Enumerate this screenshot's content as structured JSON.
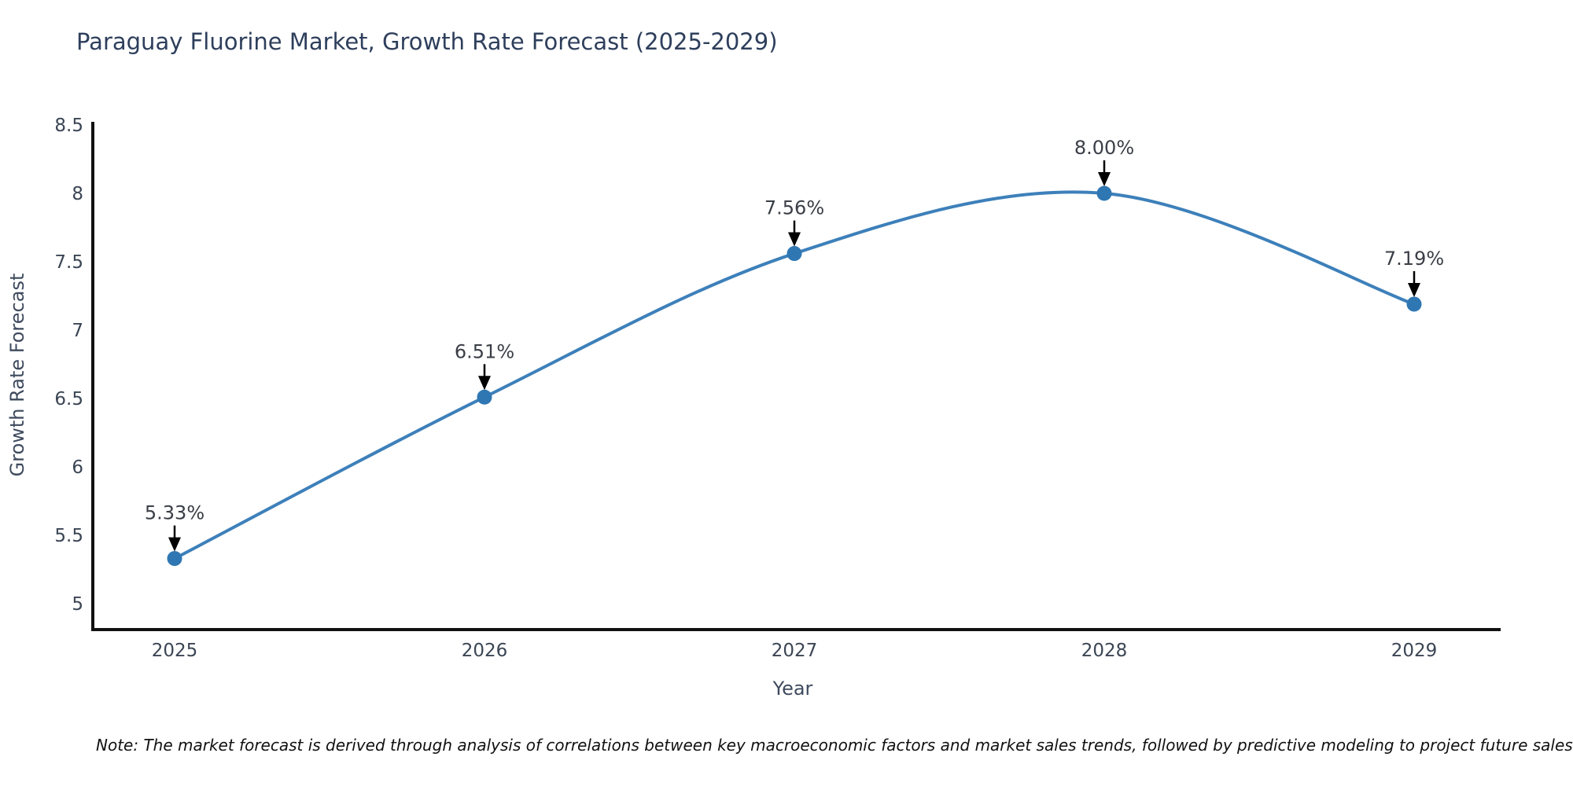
{
  "title": "Paraguay Fluorine Market, Growth Rate Forecast (2025-2029)",
  "note": "Note: The market forecast is derived through analysis of correlations between key macroeconomic factors and market sales trends, followed by predictive modeling to project future sales",
  "chart_data": {
    "type": "line",
    "title": "Paraguay Fluorine Market, Growth Rate Forecast (2025-2029)",
    "x": [
      "2025",
      "2026",
      "2027",
      "2028",
      "2029"
    ],
    "values": [
      5.33,
      6.51,
      7.56,
      8.0,
      7.19
    ],
    "point_labels": [
      "5.33%",
      "6.51%",
      "7.56%",
      "8.00%",
      "7.19%"
    ],
    "xlabel": "Year",
    "ylabel": "Growth Rate Forecast",
    "yticks": [
      5,
      5.5,
      6,
      6.5,
      7,
      7.5,
      8,
      8.5
    ],
    "ylim": [
      4.81,
      8.52
    ],
    "grid": false,
    "legend": "none",
    "annotation_style": "black-down-arrow-to-point",
    "colors": {
      "line": "#3d80ba",
      "marker": "#2f77b3",
      "axis": "#111111",
      "title": "#2e3f5c",
      "tick_label": "#3b4554",
      "axis_label": "#3e4a5e",
      "annotation_text": "#3a3e46",
      "arrow": "#000000",
      "background": "#ffffff"
    }
  }
}
